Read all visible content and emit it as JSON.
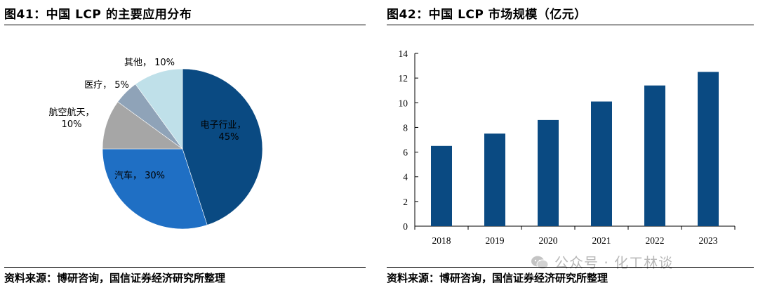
{
  "left": {
    "title": "图41：中国 LCP 的主要应用分布",
    "source": "资料来源：博研咨询，国信证券经济研究所整理"
  },
  "right": {
    "title": "图42：中国 LCP 市场规模（亿元）",
    "source": "资料来源：博研咨询，国信证券经济研究所整理",
    "watermark": "公众号 · 化工林谈"
  },
  "colors": {
    "bar": "#0a4a82",
    "pie": [
      "#0a4a82",
      "#1f6fc4",
      "#a6a6a6",
      "#8fa3b8",
      "#bfe0e9"
    ]
  },
  "chart_data": [
    {
      "type": "pie",
      "title": "图41：中国 LCP 的主要应用分布",
      "slices": [
        {
          "label": "电子行业",
          "value": 45,
          "value_label": "45%"
        },
        {
          "label": "汽车",
          "value": 30,
          "value_label": "30%"
        },
        {
          "label": "航空航天",
          "value": 10,
          "value_label": "10%"
        },
        {
          "label": "医疗",
          "value": 5,
          "value_label": "5%"
        },
        {
          "label": "其他",
          "value": 10,
          "value_label": "10%"
        }
      ],
      "start": "12 o'clock, clockwise"
    },
    {
      "type": "bar",
      "title": "图42：中国 LCP 市场规模（亿元）",
      "categories": [
        "2018",
        "2019",
        "2020",
        "2021",
        "2022",
        "2023"
      ],
      "values": [
        6.5,
        7.5,
        8.6,
        10.1,
        11.4,
        12.5
      ],
      "ylim": [
        0,
        14
      ],
      "yticks": [
        0,
        2,
        4,
        6,
        8,
        10,
        12,
        14
      ],
      "grid": false
    }
  ]
}
